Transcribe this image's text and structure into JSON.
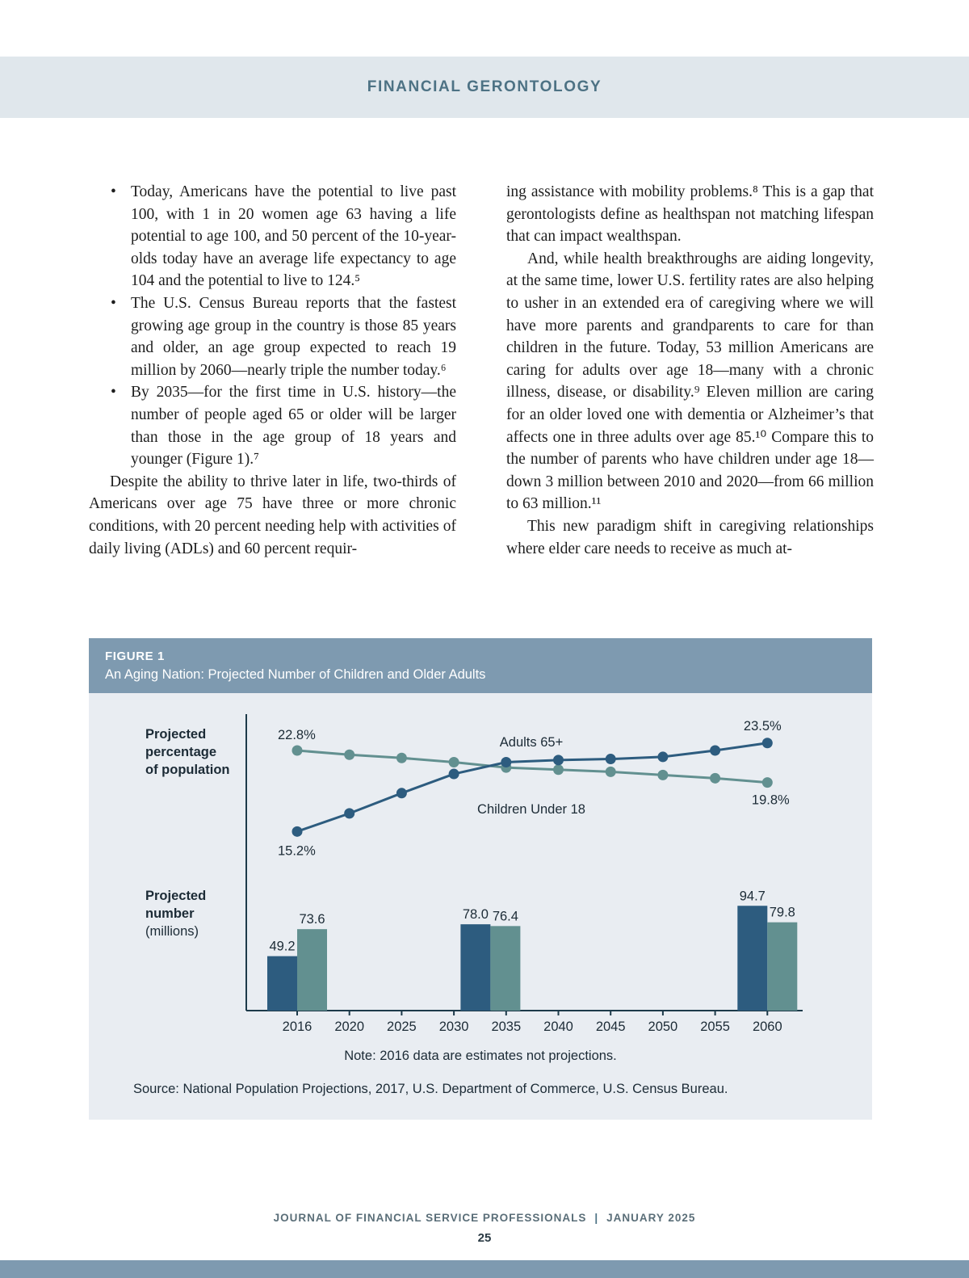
{
  "page": {
    "header": {
      "title": "FINANCIAL GERONTOLOGY"
    },
    "footer": {
      "journal": "JOURNAL OF FINANCIAL SERVICE PROFESSIONALS",
      "separator": "|",
      "date": "JANUARY 2025",
      "page_number": "25"
    }
  },
  "article": {
    "left_column": {
      "bullets": [
        "Today, Americans have the potential to live past 100, with 1 in 20 women age 63 having a life potential to age 100, and 50 percent of the 10-year-olds today have an average life expectancy to age 104 and the potential to live to 124.⁵",
        "The U.S. Census Bureau reports that the fastest growing age group in the country is those 85 years and older, an age group expected to reach 19 million by 2060—nearly triple the number today.⁶",
        "By 2035—for the first time in U.S. history—the number of people aged 65 or older will be larger than those in the age group of 18 years and younger (Figure 1).⁷"
      ],
      "paragraph": "Despite the ability to thrive later in life, two-thirds of Americans over age 75 have three or more chronic conditions, with 20 percent needing help with activities of daily living (ADLs) and 60 percent requir-"
    },
    "right_column": {
      "paragraphs": [
        "ing assistance with mobility problems.⁸ This is a gap that gerontologists define as healthspan not matching lifespan that can impact wealthspan.",
        "And, while health breakthroughs are aiding longevity, at the same time, lower U.S. fertility rates are also helping to usher in an extended era of caregiving where we will have more parents and grandparents to care for than children in the future. Today, 53 million Americans are caring for adults over age 18—many with a chronic illness, disease, or disability.⁹ Eleven million are caring for an older loved one with dementia or Alzheimer’s that affects one in three adults over age 85.¹⁰ Compare this to the number of parents who have children under age 18—down 3 million between 2010 and 2020—from 66 million to 63 million.¹¹",
        "This new paradigm shift in caregiving relationships where elder care needs to receive as much at-"
      ]
    }
  },
  "figure": {
    "label": "FIGURE 1",
    "subtitle": "An Aging Nation: Projected Number of Children and Older Adults"
  },
  "chart_data": {
    "type": "line+bar",
    "title": "An Aging Nation: Projected Number of Children and Older Adults",
    "x_years": [
      2016,
      2020,
      2025,
      2030,
      2035,
      2040,
      2045,
      2050,
      2055,
      2060
    ],
    "percent_panel": {
      "axis_label_lines": [
        "Projected",
        "percentage",
        "of population"
      ],
      "series": [
        {
          "name": "Adults 65+",
          "color": "#2d5c7f",
          "values": [
            15.2,
            16.9,
            18.8,
            20.6,
            21.7,
            21.9,
            22.0,
            22.2,
            22.8,
            23.5
          ],
          "first_label": "15.2%",
          "last_label": "23.5%"
        },
        {
          "name": "Children Under 18",
          "color": "#629090",
          "values": [
            22.8,
            22.4,
            22.1,
            21.7,
            21.2,
            21.0,
            20.8,
            20.5,
            20.2,
            19.8
          ],
          "first_label": "22.8%",
          "last_label": "19.8%"
        }
      ]
    },
    "number_panel": {
      "axis_label_lines": [
        "Projected",
        "number",
        "(millions)"
      ],
      "bar_groups": [
        {
          "x_year_position": 2016,
          "adults_65_plus": 49.2,
          "children_under_18": 73.6
        },
        {
          "x_year_position": 2033.5,
          "adults_65_plus": 78.0,
          "children_under_18": 76.4
        },
        {
          "x_year_position": 2060,
          "adults_65_plus": 94.7,
          "children_under_18": 79.8
        }
      ]
    },
    "note": "Note: 2016 data are estimates not projections.",
    "source": "Source: National Population Projections, 2017, U.S. Department of Commerce, U.S. Census Bureau."
  }
}
